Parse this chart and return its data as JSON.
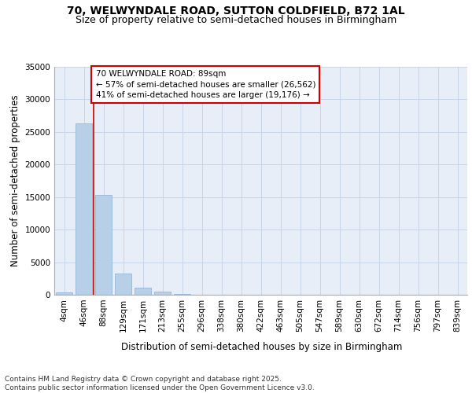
{
  "title_line1": "70, WELWYNDALE ROAD, SUTTON COLDFIELD, B72 1AL",
  "title_line2": "Size of property relative to semi-detached houses in Birmingham",
  "xlabel": "Distribution of semi-detached houses by size in Birmingham",
  "ylabel": "Number of semi-detached properties",
  "footer": "Contains HM Land Registry data © Crown copyright and database right 2025.\nContains public sector information licensed under the Open Government Licence v3.0.",
  "bar_labels": [
    "4sqm",
    "46sqm",
    "88sqm",
    "129sqm",
    "171sqm",
    "213sqm",
    "255sqm",
    "296sqm",
    "338sqm",
    "380sqm",
    "422sqm",
    "463sqm",
    "505sqm",
    "547sqm",
    "589sqm",
    "630sqm",
    "672sqm",
    "714sqm",
    "756sqm",
    "797sqm",
    "839sqm"
  ],
  "bar_values": [
    400,
    26300,
    15300,
    3300,
    1050,
    430,
    120,
    30,
    5,
    2,
    1,
    0,
    0,
    0,
    0,
    0,
    0,
    0,
    0,
    0,
    0
  ],
  "bar_color": "#b8cfe8",
  "bar_edge_color": "#8ab0d8",
  "grid_color": "#c8d4e8",
  "background_color": "#e8eef8",
  "vline_color": "#cc0000",
  "annotation_text": "70 WELWYNDALE ROAD: 89sqm\n← 57% of semi-detached houses are smaller (26,562)\n41% of semi-detached houses are larger (19,176) →",
  "annotation_box_color": "#cc0000",
  "ylim": [
    0,
    35000
  ],
  "yticks": [
    0,
    5000,
    10000,
    15000,
    20000,
    25000,
    30000,
    35000
  ],
  "title_fontsize": 10,
  "subtitle_fontsize": 9,
  "axis_label_fontsize": 8.5,
  "tick_fontsize": 7.5,
  "annotation_fontsize": 7.5,
  "footer_fontsize": 6.5
}
